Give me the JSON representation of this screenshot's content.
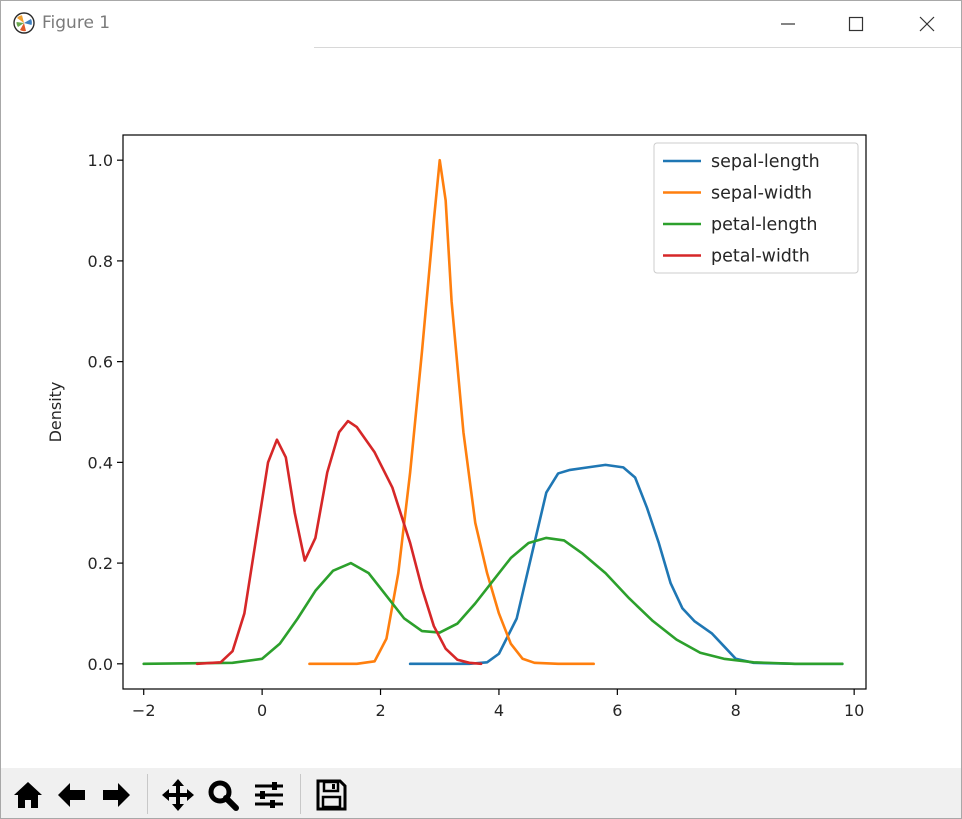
{
  "window": {
    "title": "Figure 1"
  },
  "toolbar": {
    "buttons": [
      {
        "name": "home-button",
        "icon": "home-icon"
      },
      {
        "name": "back-button",
        "icon": "arrow-left-icon"
      },
      {
        "name": "forward-button",
        "icon": "arrow-right-icon"
      },
      {
        "name": "pan-button",
        "icon": "move-icon"
      },
      {
        "name": "zoom-button",
        "icon": "magnifier-icon"
      },
      {
        "name": "configure-subplots-button",
        "icon": "sliders-icon"
      },
      {
        "name": "save-button",
        "icon": "floppy-disk-icon"
      }
    ]
  },
  "chart_data": {
    "type": "line",
    "title": "",
    "xlabel": "",
    "ylabel": "Density",
    "xlim": [
      -2.35,
      10.2
    ],
    "ylim": [
      -0.05,
      1.05
    ],
    "xticks": [
      -2,
      0,
      2,
      4,
      6,
      8,
      10
    ],
    "yticks": [
      0.0,
      0.2,
      0.4,
      0.6,
      0.8,
      1.0
    ],
    "xtick_labels": [
      "−2",
      "0",
      "2",
      "4",
      "6",
      "8",
      "10"
    ],
    "ytick_labels": [
      "0.0",
      "0.2",
      "0.4",
      "0.6",
      "0.8",
      "1.0"
    ],
    "grid": false,
    "legend_position": "top-right",
    "series": [
      {
        "name": "sepal-length",
        "color": "#1f77b4",
        "points": [
          [
            2.5,
            0.0
          ],
          [
            3.5,
            0.0
          ],
          [
            3.8,
            0.003
          ],
          [
            4.0,
            0.02
          ],
          [
            4.3,
            0.09
          ],
          [
            4.6,
            0.24
          ],
          [
            4.8,
            0.34
          ],
          [
            5.0,
            0.378
          ],
          [
            5.2,
            0.385
          ],
          [
            5.5,
            0.39
          ],
          [
            5.8,
            0.395
          ],
          [
            6.1,
            0.39
          ],
          [
            6.3,
            0.37
          ],
          [
            6.5,
            0.31
          ],
          [
            6.7,
            0.24
          ],
          [
            6.9,
            0.16
          ],
          [
            7.1,
            0.11
          ],
          [
            7.3,
            0.085
          ],
          [
            7.6,
            0.06
          ],
          [
            7.8,
            0.035
          ],
          [
            8.0,
            0.01
          ],
          [
            8.3,
            0.002
          ],
          [
            9.0,
            0.0
          ],
          [
            9.8,
            0.0
          ]
        ]
      },
      {
        "name": "sepal-width",
        "color": "#ff7f0e",
        "points": [
          [
            0.8,
            0.0
          ],
          [
            1.6,
            0.0
          ],
          [
            1.9,
            0.005
          ],
          [
            2.1,
            0.05
          ],
          [
            2.3,
            0.18
          ],
          [
            2.5,
            0.38
          ],
          [
            2.7,
            0.62
          ],
          [
            2.9,
            0.88
          ],
          [
            3.0,
            1.0
          ],
          [
            3.1,
            0.92
          ],
          [
            3.2,
            0.72
          ],
          [
            3.4,
            0.46
          ],
          [
            3.6,
            0.28
          ],
          [
            3.8,
            0.18
          ],
          [
            4.0,
            0.1
          ],
          [
            4.2,
            0.04
          ],
          [
            4.4,
            0.01
          ],
          [
            4.6,
            0.002
          ],
          [
            5.0,
            0.0
          ],
          [
            5.6,
            0.0
          ]
        ]
      },
      {
        "name": "petal-length",
        "color": "#2ca02c",
        "points": [
          [
            -2.0,
            0.0
          ],
          [
            -0.5,
            0.002
          ],
          [
            0.0,
            0.01
          ],
          [
            0.3,
            0.04
          ],
          [
            0.6,
            0.09
          ],
          [
            0.9,
            0.145
          ],
          [
            1.2,
            0.185
          ],
          [
            1.5,
            0.2
          ],
          [
            1.8,
            0.18
          ],
          [
            2.1,
            0.135
          ],
          [
            2.4,
            0.09
          ],
          [
            2.7,
            0.065
          ],
          [
            3.0,
            0.062
          ],
          [
            3.3,
            0.08
          ],
          [
            3.6,
            0.12
          ],
          [
            3.9,
            0.165
          ],
          [
            4.2,
            0.21
          ],
          [
            4.5,
            0.24
          ],
          [
            4.8,
            0.25
          ],
          [
            5.1,
            0.245
          ],
          [
            5.4,
            0.22
          ],
          [
            5.8,
            0.18
          ],
          [
            6.2,
            0.13
          ],
          [
            6.6,
            0.085
          ],
          [
            7.0,
            0.048
          ],
          [
            7.4,
            0.022
          ],
          [
            7.8,
            0.01
          ],
          [
            8.3,
            0.003
          ],
          [
            9.0,
            0.0
          ],
          [
            9.8,
            0.0
          ]
        ]
      },
      {
        "name": "petal-width",
        "color": "#d62728",
        "points": [
          [
            -1.1,
            0.0
          ],
          [
            -0.7,
            0.003
          ],
          [
            -0.5,
            0.025
          ],
          [
            -0.3,
            0.1
          ],
          [
            -0.1,
            0.25
          ],
          [
            0.1,
            0.4
          ],
          [
            0.25,
            0.445
          ],
          [
            0.4,
            0.41
          ],
          [
            0.55,
            0.3
          ],
          [
            0.72,
            0.205
          ],
          [
            0.9,
            0.25
          ],
          [
            1.1,
            0.38
          ],
          [
            1.3,
            0.46
          ],
          [
            1.45,
            0.482
          ],
          [
            1.6,
            0.47
          ],
          [
            1.9,
            0.42
          ],
          [
            2.2,
            0.35
          ],
          [
            2.5,
            0.24
          ],
          [
            2.7,
            0.15
          ],
          [
            2.9,
            0.075
          ],
          [
            3.1,
            0.03
          ],
          [
            3.3,
            0.008
          ],
          [
            3.5,
            0.002
          ],
          [
            3.7,
            0.0
          ]
        ]
      }
    ]
  }
}
